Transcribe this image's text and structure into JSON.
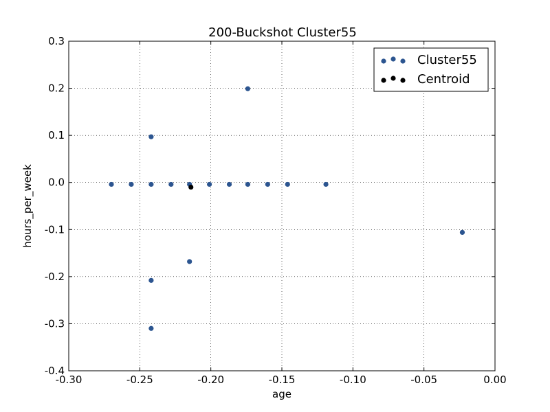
{
  "chart_data": {
    "type": "scatter",
    "title": "200-Buckshot Cluster55",
    "xlabel": "age",
    "ylabel": "hours_per_week",
    "xlim": [
      -0.3,
      0.0
    ],
    "ylim": [
      -0.4,
      0.3
    ],
    "xticks": [
      "-0.30",
      "-0.25",
      "-0.20",
      "-0.15",
      "-0.10",
      "-0.05",
      "0.00"
    ],
    "yticks": [
      "0.3",
      "0.2",
      "0.1",
      "0.0",
      "-0.1",
      "-0.2",
      "-0.3",
      "-0.4"
    ],
    "grid": true,
    "legend_position": "top-right",
    "series": [
      {
        "name": "Cluster55",
        "color": "#2c5590",
        "points": [
          [
            -0.27,
            -0.004
          ],
          [
            -0.256,
            -0.004
          ],
          [
            -0.242,
            -0.004
          ],
          [
            -0.228,
            -0.004
          ],
          [
            -0.215,
            -0.004
          ],
          [
            -0.201,
            -0.004
          ],
          [
            -0.187,
            -0.004
          ],
          [
            -0.174,
            -0.004
          ],
          [
            -0.16,
            -0.004
          ],
          [
            -0.146,
            -0.004
          ],
          [
            -0.119,
            -0.004
          ],
          [
            -0.242,
            0.097
          ],
          [
            -0.174,
            0.199
          ],
          [
            -0.023,
            -0.106
          ],
          [
            -0.215,
            -0.168
          ],
          [
            -0.242,
            -0.208
          ],
          [
            -0.242,
            -0.31
          ]
        ]
      },
      {
        "name": "Centroid",
        "color": "#000000",
        "points": [
          [
            -0.214,
            -0.01
          ]
        ]
      }
    ]
  }
}
